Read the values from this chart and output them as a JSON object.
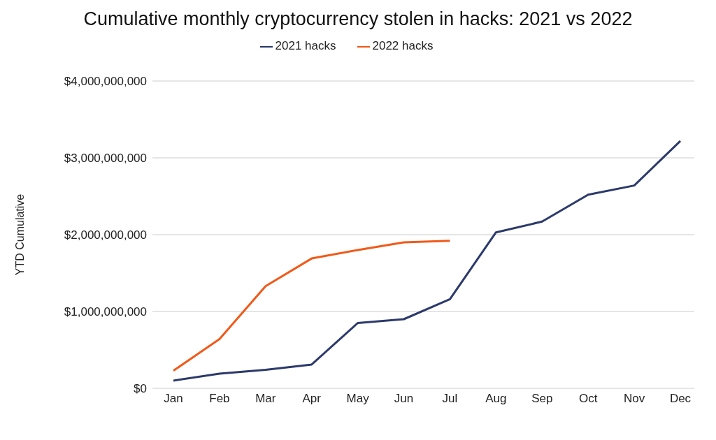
{
  "chart_data": {
    "type": "line",
    "title": "Cumulative monthly cryptocurrency stolen in hacks: 2021 vs 2022",
    "ylabel": "YTD Cumulative",
    "categories": [
      "Jan",
      "Feb",
      "Mar",
      "Apr",
      "May",
      "Jun",
      "Jul",
      "Aug",
      "Sep",
      "Oct",
      "Nov",
      "Dec"
    ],
    "series": [
      {
        "name": "2021 hacks",
        "color": "#2c3a6b",
        "values": [
          100000000,
          190000000,
          240000000,
          310000000,
          850000000,
          900000000,
          1160000000,
          2030000000,
          2170000000,
          2520000000,
          2640000000,
          3220000000
        ]
      },
      {
        "name": "2022 hacks",
        "color": "#f05a1a",
        "values": [
          230000000,
          640000000,
          1330000000,
          1690000000,
          1800000000,
          1900000000,
          1920000000,
          null,
          null,
          null,
          null,
          null
        ]
      }
    ],
    "ylim": [
      0,
      4000000000
    ],
    "yticks": [
      {
        "value": 0,
        "label": "$0"
      },
      {
        "value": 1000000000,
        "label": "$1,000,000,000"
      },
      {
        "value": 2000000000,
        "label": "$2,000,000,000"
      },
      {
        "value": 3000000000,
        "label": "$3,000,000,000"
      },
      {
        "value": 4000000000,
        "label": "$4,000,000,000"
      }
    ],
    "grid": "y",
    "legend": "top",
    "marker": "none",
    "line_style": "solid"
  }
}
